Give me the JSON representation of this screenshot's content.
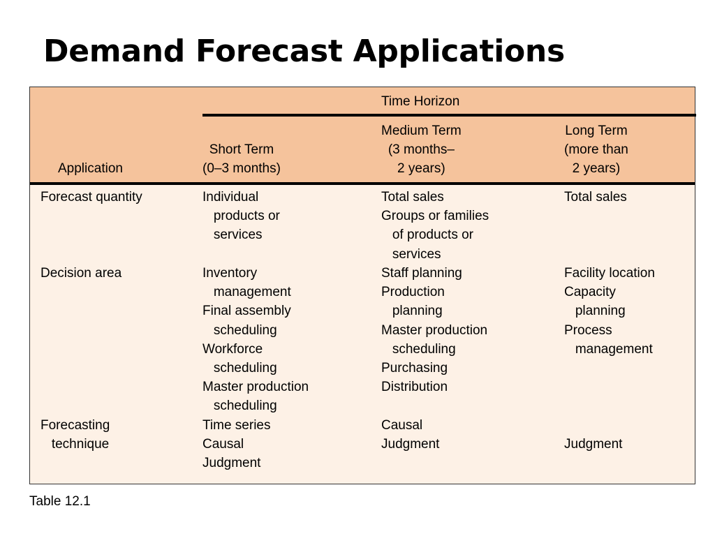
{
  "title": "Demand Forecast Applications",
  "caption": "Table 12.1",
  "colors": {
    "header_bg": "#f5c39c",
    "body_bg": "#fdf1e6",
    "rule": "#000000"
  },
  "table": {
    "group_header": "Time Horizon",
    "columns": {
      "application": "Application",
      "short": "Short Term\n(0–3 months)",
      "medium": "Medium Term\n(3 months–\n2 years)",
      "long": "Long Term\n(more than\n2 years)"
    },
    "rows": [
      {
        "application": "Forecast quantity",
        "short": "Individual\n   products or\n   services",
        "medium": "Total sales\nGroups or families\n   of products or\n   services",
        "long": "Total sales"
      },
      {
        "application": "Decision area",
        "short": "Inventory\n   management\nFinal assembly\n   scheduling\nWorkforce\n   scheduling\nMaster production\n   scheduling",
        "medium": "Staff planning\nProduction\n   planning\nMaster production\n   scheduling\nPurchasing\nDistribution",
        "long": "Facility location\nCapacity\n   planning\nProcess\n   management"
      },
      {
        "application": "Forecasting\n   technique",
        "short": "Time series\nCausal\nJudgment",
        "medium": "Causal\nJudgment",
        "long": "\nJudgment"
      }
    ]
  }
}
